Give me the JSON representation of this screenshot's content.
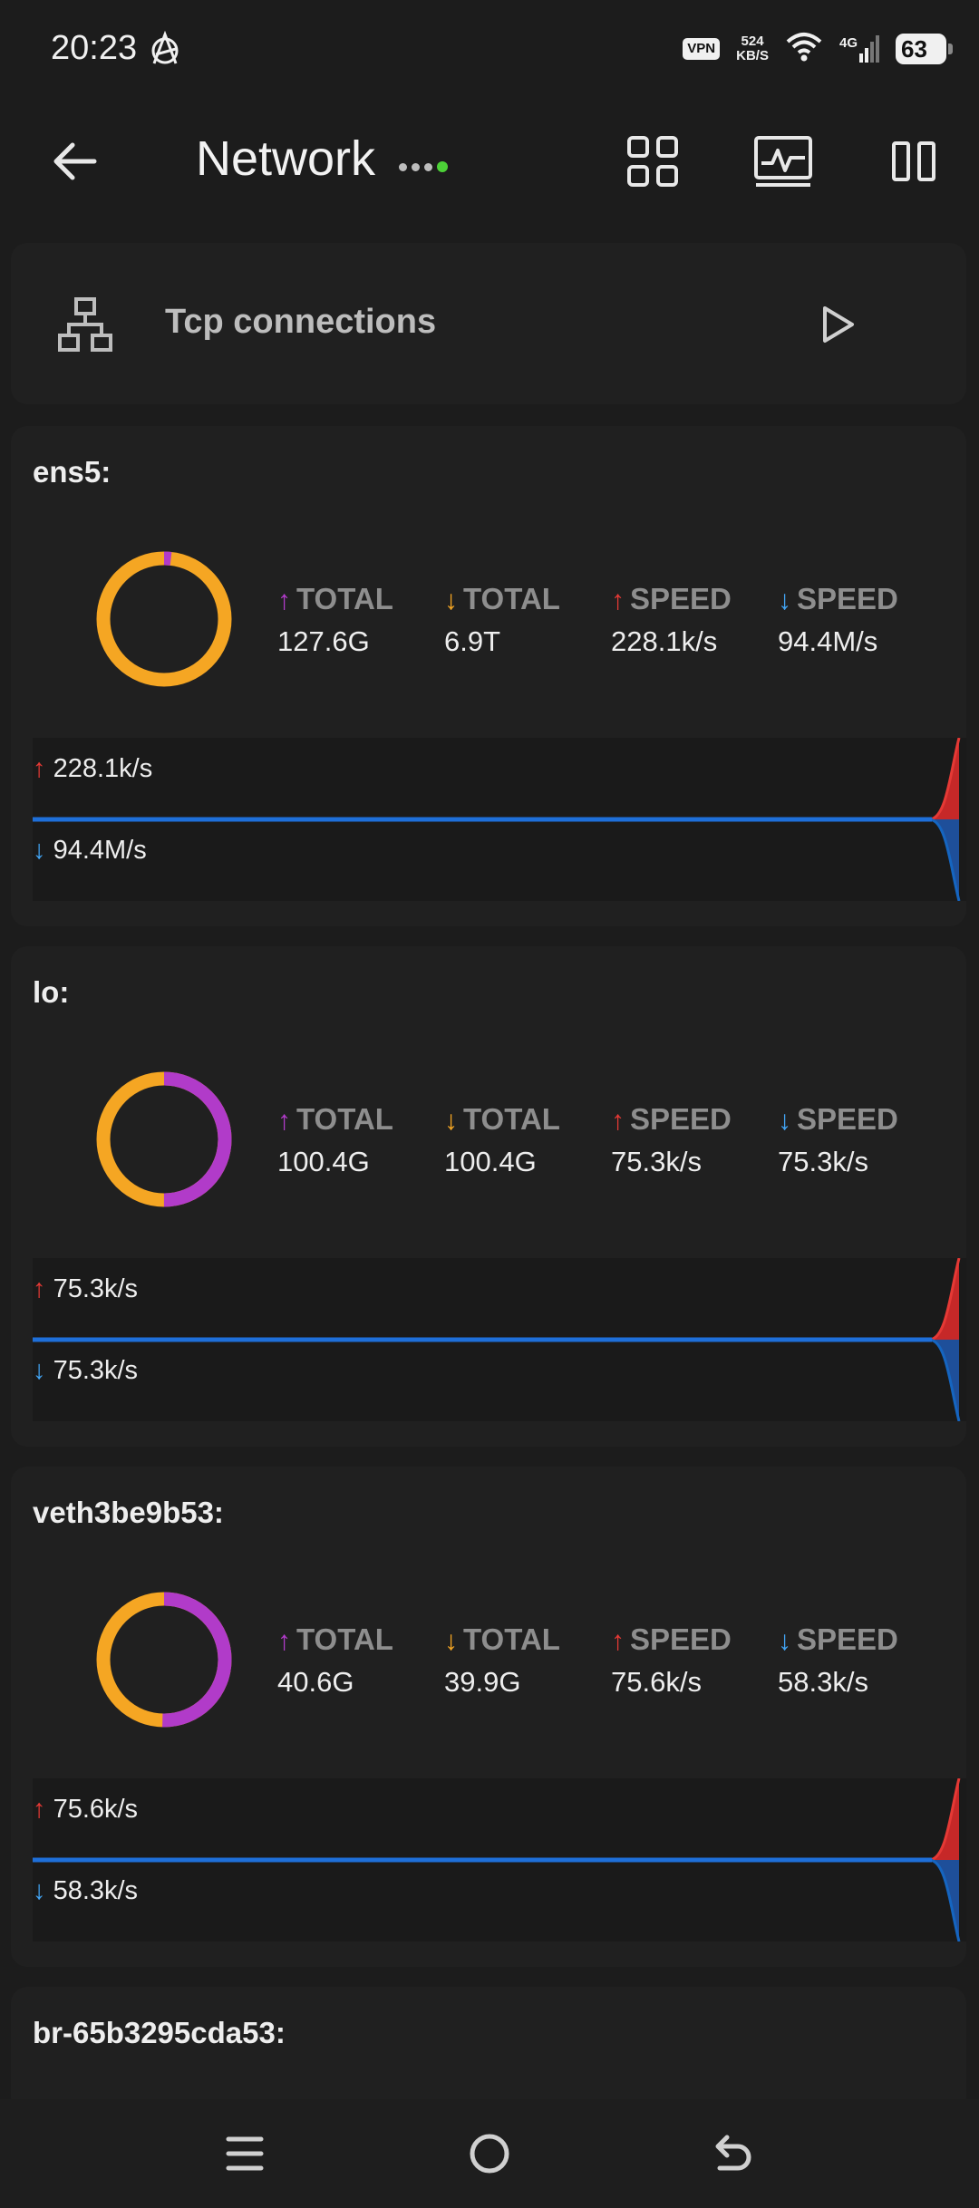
{
  "status": {
    "time": "20:23",
    "vpn": "VPN",
    "speed_value": "524",
    "speed_unit": "KB/S",
    "network_type": "4G",
    "battery": "63"
  },
  "header": {
    "title": "Network"
  },
  "tcp": {
    "label": "Tcp connections"
  },
  "labels": {
    "up_total": "TOTAL",
    "down_total": "TOTAL",
    "up_speed": "SPEED",
    "down_speed": "SPEED",
    "up_arrow": "↑",
    "down_arrow": "↓"
  },
  "colors": {
    "upload": "#b13bc9",
    "download": "#f5a623",
    "up_speed": "#e53935",
    "down_speed": "#42a5f5"
  },
  "interfaces": [
    {
      "name": "ens5:",
      "up_total": "127.6G",
      "down_total": "6.9T",
      "up_speed": "228.1k/s",
      "down_speed": "94.4M/s",
      "upload_fraction": 0.018
    },
    {
      "name": "lo:",
      "up_total": "100.4G",
      "down_total": "100.4G",
      "up_speed": "75.3k/s",
      "down_speed": "75.3k/s",
      "upload_fraction": 0.5
    },
    {
      "name": "veth3be9b53:",
      "up_total": "40.6G",
      "down_total": "39.9G",
      "up_speed": "75.6k/s",
      "down_speed": "58.3k/s",
      "upload_fraction": 0.504
    },
    {
      "name": "br-65b3295cda53:"
    }
  ]
}
